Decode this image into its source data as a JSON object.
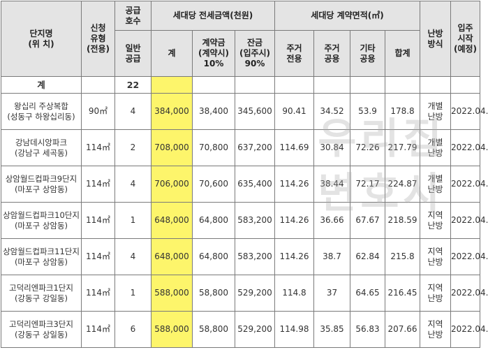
{
  "header": {
    "complex": [
      "단지명",
      "(위 치)"
    ],
    "type": [
      "신청",
      "유형",
      "(전용)"
    ],
    "supply": [
      "공급",
      "호수"
    ],
    "deposit_group": "세대당 전세금액(천원)",
    "area_group": "세대당 계약면적(㎡)",
    "heating": [
      "난방",
      "방식"
    ],
    "movein": [
      "입주",
      "시작",
      "(예정)"
    ],
    "supply_sub": [
      "일반",
      "공급"
    ],
    "total": "계",
    "down_payment": [
      "계약금",
      "(계약시)",
      "10%"
    ],
    "balance": [
      "잔금",
      "(입주시)",
      "90%"
    ],
    "residential_exclusive": [
      "주거",
      "전용"
    ],
    "residential_common": [
      "주거",
      "공용"
    ],
    "other_common": [
      "기타",
      "공용"
    ],
    "area_sum": "합계"
  },
  "total_row": {
    "label": "계",
    "supply": "22"
  },
  "rows": [
    {
      "name": [
        "왕십리 주상복합",
        "(성동구 하왕십리동)"
      ],
      "type": "90㎡",
      "supply": "4",
      "total": "384,000",
      "down": "38,400",
      "balance": "345,600",
      "excl": "90.41",
      "common": "34.52",
      "other": "53.9",
      "sum": "178.8",
      "heat": [
        "개별",
        "난방"
      ],
      "movein": "2022.04."
    },
    {
      "name": [
        "강남데시앙파크",
        "(강남구 세곡동)"
      ],
      "type": "114㎡",
      "supply": "2",
      "total": "708,000",
      "down": "70,800",
      "balance": "637,200",
      "excl": "114.69",
      "common": "30.84",
      "other": "72.26",
      "sum": "217.79",
      "heat": [
        "개별",
        "난방"
      ],
      "movein": "2022.04."
    },
    {
      "name": [
        "상암월드컵파크9단지",
        "(마포구 상암동)"
      ],
      "type": "114㎡",
      "supply": "4",
      "total": "706,000",
      "down": "70,600",
      "balance": "635,400",
      "excl": "114.26",
      "common": "38.44",
      "other": "72.17",
      "sum": "224.87",
      "heat": [
        "개별",
        "난방"
      ],
      "movein": "2022.04."
    },
    {
      "name": [
        "상암월드컵파크10단지",
        "(마포구 상암동)"
      ],
      "type": "114㎡",
      "supply": "1",
      "total": "648,000",
      "down": "64,800",
      "balance": "583,200",
      "excl": "114.26",
      "common": "36.66",
      "other": "67.67",
      "sum": "218.59",
      "heat": [
        "지역",
        "난방"
      ],
      "movein": "2022.04."
    },
    {
      "name": [
        "상암월드컵파크11단지",
        "(마포구 상암동)"
      ],
      "type": "114㎡",
      "supply": "4",
      "total": "648,000",
      "down": "64,800",
      "balance": "583,200",
      "excl": "114.26",
      "common": "38.7",
      "other": "62.84",
      "sum": "215.8",
      "heat": [
        "지역",
        "난방"
      ],
      "movein": "2022.04."
    },
    {
      "name": [
        "고덕리엔파크1단지",
        "(강동구 강일동)"
      ],
      "type": "114㎡",
      "supply": "1",
      "total": "588,000",
      "down": "58,800",
      "balance": "529,200",
      "excl": "114.8",
      "common": "37",
      "other": "64.65",
      "sum": "216.45",
      "heat": [
        "지역",
        "난방"
      ],
      "movein": "2022.04."
    },
    {
      "name": [
        "고덕리엔파크3단지",
        "(강동구 상일동)"
      ],
      "type": "114㎡",
      "supply": "6",
      "total": "588,000",
      "down": "58,800",
      "balance": "529,200",
      "excl": "114.98",
      "common": "35.85",
      "other": "56.83",
      "sum": "207.66",
      "heat": [
        "지역",
        "난방"
      ],
      "movein": "2022.04."
    }
  ],
  "watermark": [
    "우리집",
    "변호사"
  ]
}
